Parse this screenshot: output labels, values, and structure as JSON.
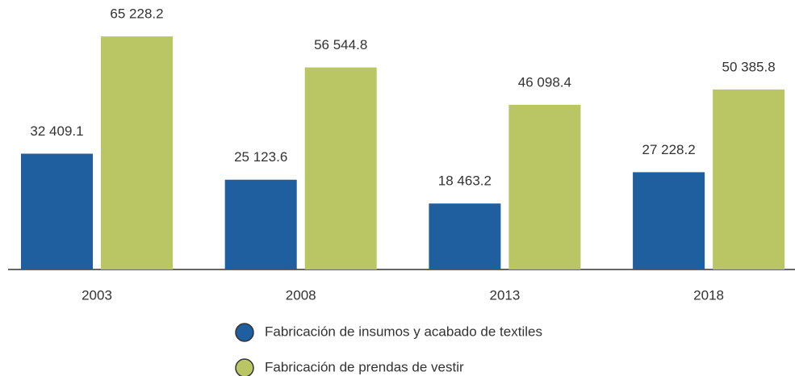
{
  "chart_data": {
    "type": "bar",
    "categories": [
      "2003",
      "2008",
      "2013",
      "2018"
    ],
    "series": [
      {
        "name": "Fabricación de insumos y acabado de textiles",
        "color": "#1f5fa0",
        "values": [
          32409.1,
          25123.6,
          18463.2,
          27228.2
        ],
        "value_labels": [
          "32 409.1",
          "25 123.6",
          "18 463.2",
          "27 228.2"
        ]
      },
      {
        "name": "Fabricación de prendas de vestir",
        "color": "#b9c663",
        "values": [
          65228.2,
          56544.8,
          46098.4,
          50385.8
        ],
        "value_labels": [
          "65 228.2",
          "56 544.8",
          "46 098.4",
          "50 385.8"
        ]
      }
    ],
    "ylim": [
      0,
      70000
    ]
  }
}
